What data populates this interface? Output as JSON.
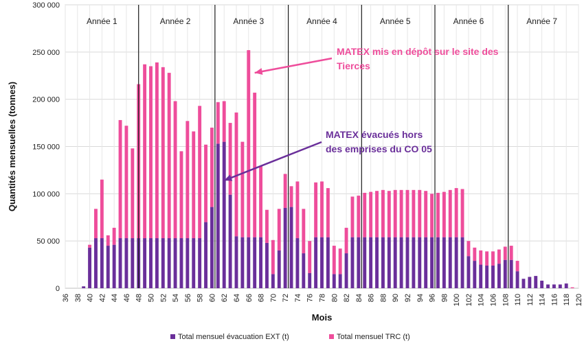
{
  "chart_data": {
    "type": "bar",
    "stacked": true,
    "xlabel": "Mois",
    "ylabel": "Quantités mensuelles (tonnes)",
    "ylim": [
      0,
      300000
    ],
    "yticks": [
      "0",
      "50 000",
      "100 000",
      "150 000",
      "200 000",
      "250 000",
      "300 000"
    ],
    "xlim": [
      36,
      120
    ],
    "xticks": [
      "36",
      "38",
      "40",
      "42",
      "44",
      "46",
      "48",
      "50",
      "52",
      "54",
      "56",
      "58",
      "60",
      "62",
      "64",
      "66",
      "68",
      "70",
      "72",
      "74",
      "76",
      "78",
      "80",
      "82",
      "84",
      "86",
      "88",
      "90",
      "92",
      "94",
      "96",
      "98",
      "100",
      "102",
      "104",
      "106",
      "108",
      "110",
      "112",
      "114",
      "116",
      "118",
      "120"
    ],
    "grid": true,
    "legend_position": "bottom",
    "months": [
      39,
      40,
      41,
      42,
      43,
      44,
      45,
      46,
      47,
      48,
      49,
      50,
      51,
      52,
      53,
      54,
      55,
      56,
      57,
      58,
      59,
      60,
      61,
      62,
      63,
      64,
      65,
      66,
      67,
      68,
      69,
      70,
      71,
      72,
      73,
      74,
      75,
      76,
      77,
      78,
      79,
      80,
      81,
      82,
      83,
      84,
      85,
      86,
      87,
      88,
      89,
      90,
      91,
      92,
      93,
      94,
      95,
      96,
      97,
      98,
      99,
      100,
      101,
      102,
      103,
      104,
      105,
      106,
      107,
      108,
      109,
      110,
      111,
      112,
      113,
      114,
      115,
      116,
      117,
      118,
      119
    ],
    "series": [
      {
        "name": "Total mensuel évacuation EXT (t)",
        "color": "#6a2f9a",
        "values": [
          2000,
          43000,
          53000,
          53000,
          45000,
          46000,
          53000,
          53000,
          53000,
          53000,
          53000,
          53000,
          53000,
          53000,
          53000,
          53000,
          53000,
          53000,
          53000,
          53000,
          70000,
          86000,
          153000,
          155000,
          99000,
          55000,
          54000,
          54000,
          54000,
          54000,
          48000,
          15000,
          40000,
          85000,
          86000,
          53000,
          37000,
          16000,
          54000,
          54000,
          54000,
          15000,
          15000,
          37000,
          54000,
          54000,
          54000,
          54000,
          54000,
          54000,
          54000,
          54000,
          54000,
          54000,
          54000,
          54000,
          54000,
          54000,
          54000,
          54000,
          54000,
          54000,
          54000,
          34000,
          29000,
          25000,
          24000,
          24000,
          26000,
          30000,
          30000,
          18000,
          10000,
          12000,
          13000,
          8000,
          4000,
          4000,
          4000,
          5000,
          0
        ]
      },
      {
        "name": "Total mensuel TRC (t)",
        "color": "#ee4d9b",
        "values": [
          0,
          3000,
          31000,
          62000,
          11000,
          18000,
          125000,
          119000,
          95000,
          163000,
          184000,
          182000,
          186000,
          181000,
          175000,
          145000,
          92000,
          124000,
          113000,
          140000,
          82000,
          84000,
          44000,
          43000,
          76000,
          131000,
          101000,
          198000,
          153000,
          75000,
          35000,
          36000,
          44000,
          36000,
          22000,
          60000,
          47000,
          34000,
          58000,
          59000,
          52000,
          30000,
          27000,
          27000,
          43000,
          44000,
          47000,
          48000,
          49000,
          50000,
          49000,
          50000,
          50000,
          50000,
          50000,
          50000,
          49000,
          46000,
          47000,
          48000,
          50000,
          52000,
          51000,
          16000,
          14000,
          15000,
          15000,
          15000,
          15000,
          14000,
          15000,
          11000,
          0,
          0,
          0,
          0,
          0,
          0,
          0,
          0,
          1000
        ]
      }
    ],
    "period_separators": [
      48,
      60.5,
      72.5,
      84.5,
      96.5,
      108.5
    ],
    "periods": [
      {
        "label": "Année 1",
        "center": 42
      },
      {
        "label": "Année 2",
        "center": 54
      },
      {
        "label": "Année 3",
        "center": 66
      },
      {
        "label": "Année 4",
        "center": 78
      },
      {
        "label": "Année 5",
        "center": 90
      },
      {
        "label": "Année 6",
        "center": 102
      },
      {
        "label": "Année 7",
        "center": 114
      }
    ],
    "annotations": [
      {
        "lines": [
          "MATEX mis en dépôt sur le site des",
          "Tierces"
        ],
        "color": "#ee4d9b",
        "points_to": {
          "x": 67,
          "y": 228000
        }
      },
      {
        "lines": [
          "MATEX évacués hors",
          "des emprises du CO 05"
        ],
        "color": "#6a2f9a",
        "points_to": {
          "x": 62,
          "y": 114000
        }
      }
    ]
  }
}
